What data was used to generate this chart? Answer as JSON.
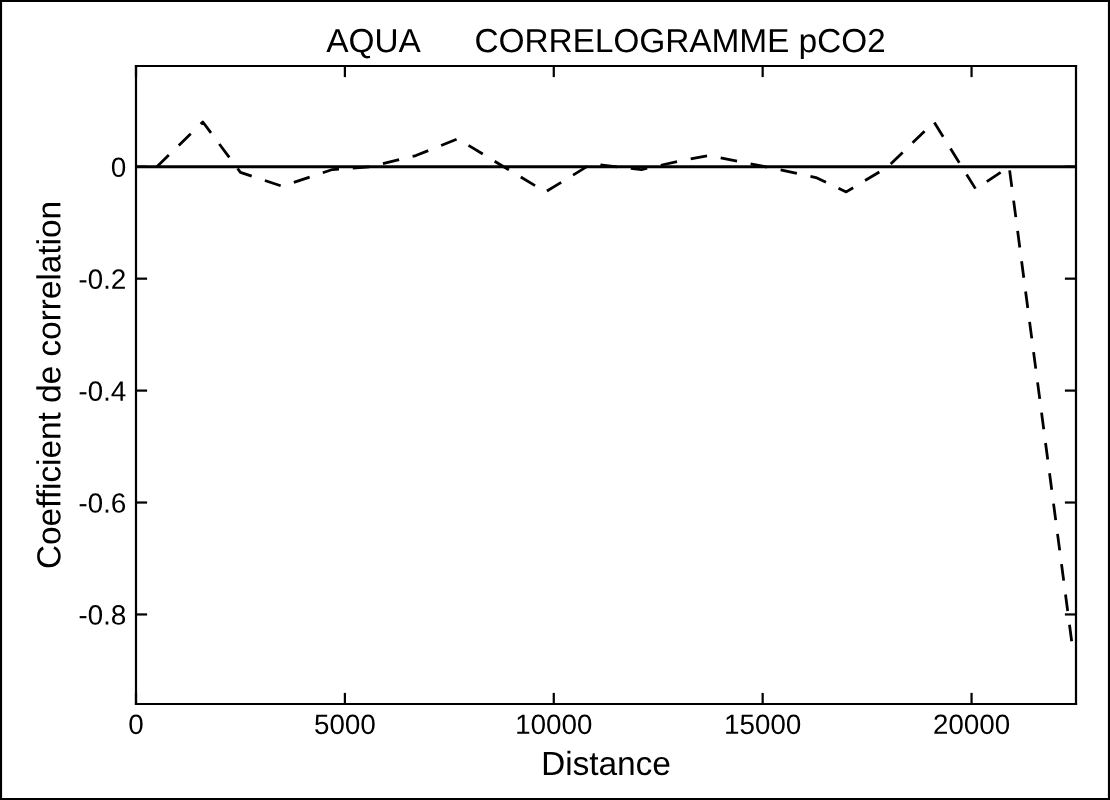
{
  "chart_data": {
    "type": "line",
    "title": "AQUA      CORRELOGRAMME pCO2",
    "xlabel": "Distance",
    "ylabel": "Coefficient de correlation",
    "x": [
      500,
      1600,
      2500,
      3500,
      4700,
      5600,
      6700,
      7700,
      8800,
      9800,
      10900,
      12100,
      13000,
      13700,
      15400,
      16300,
      17000,
      18000,
      19100,
      20100,
      20900,
      22400
    ],
    "series": [
      {
        "color": "#000000",
        "values": [
          0,
          0.08,
          -0.01,
          -0.035,
          -0.005,
          0,
          0.02,
          0.05,
          0,
          -0.045,
          0.005,
          -0.005,
          0.01,
          0.02,
          -0.005,
          -0.02,
          -0.045,
          0,
          0.08,
          -0.04,
          0,
          -0.85
        ]
      }
    ],
    "line_style": "dashed",
    "marker": "none",
    "xlim": [
      0,
      22500
    ],
    "xticks": [
      0,
      5000,
      10000,
      15000,
      20000
    ],
    "ylim": [
      -0.96,
      0.18
    ],
    "yticks": [
      -0.8,
      -0.6,
      -0.4,
      -0.2,
      0
    ],
    "ref_lines": [
      {
        "axis": "y",
        "value": 0,
        "color": "#000000",
        "line_style": "solid"
      }
    ],
    "grid": false,
    "legend": false
  }
}
